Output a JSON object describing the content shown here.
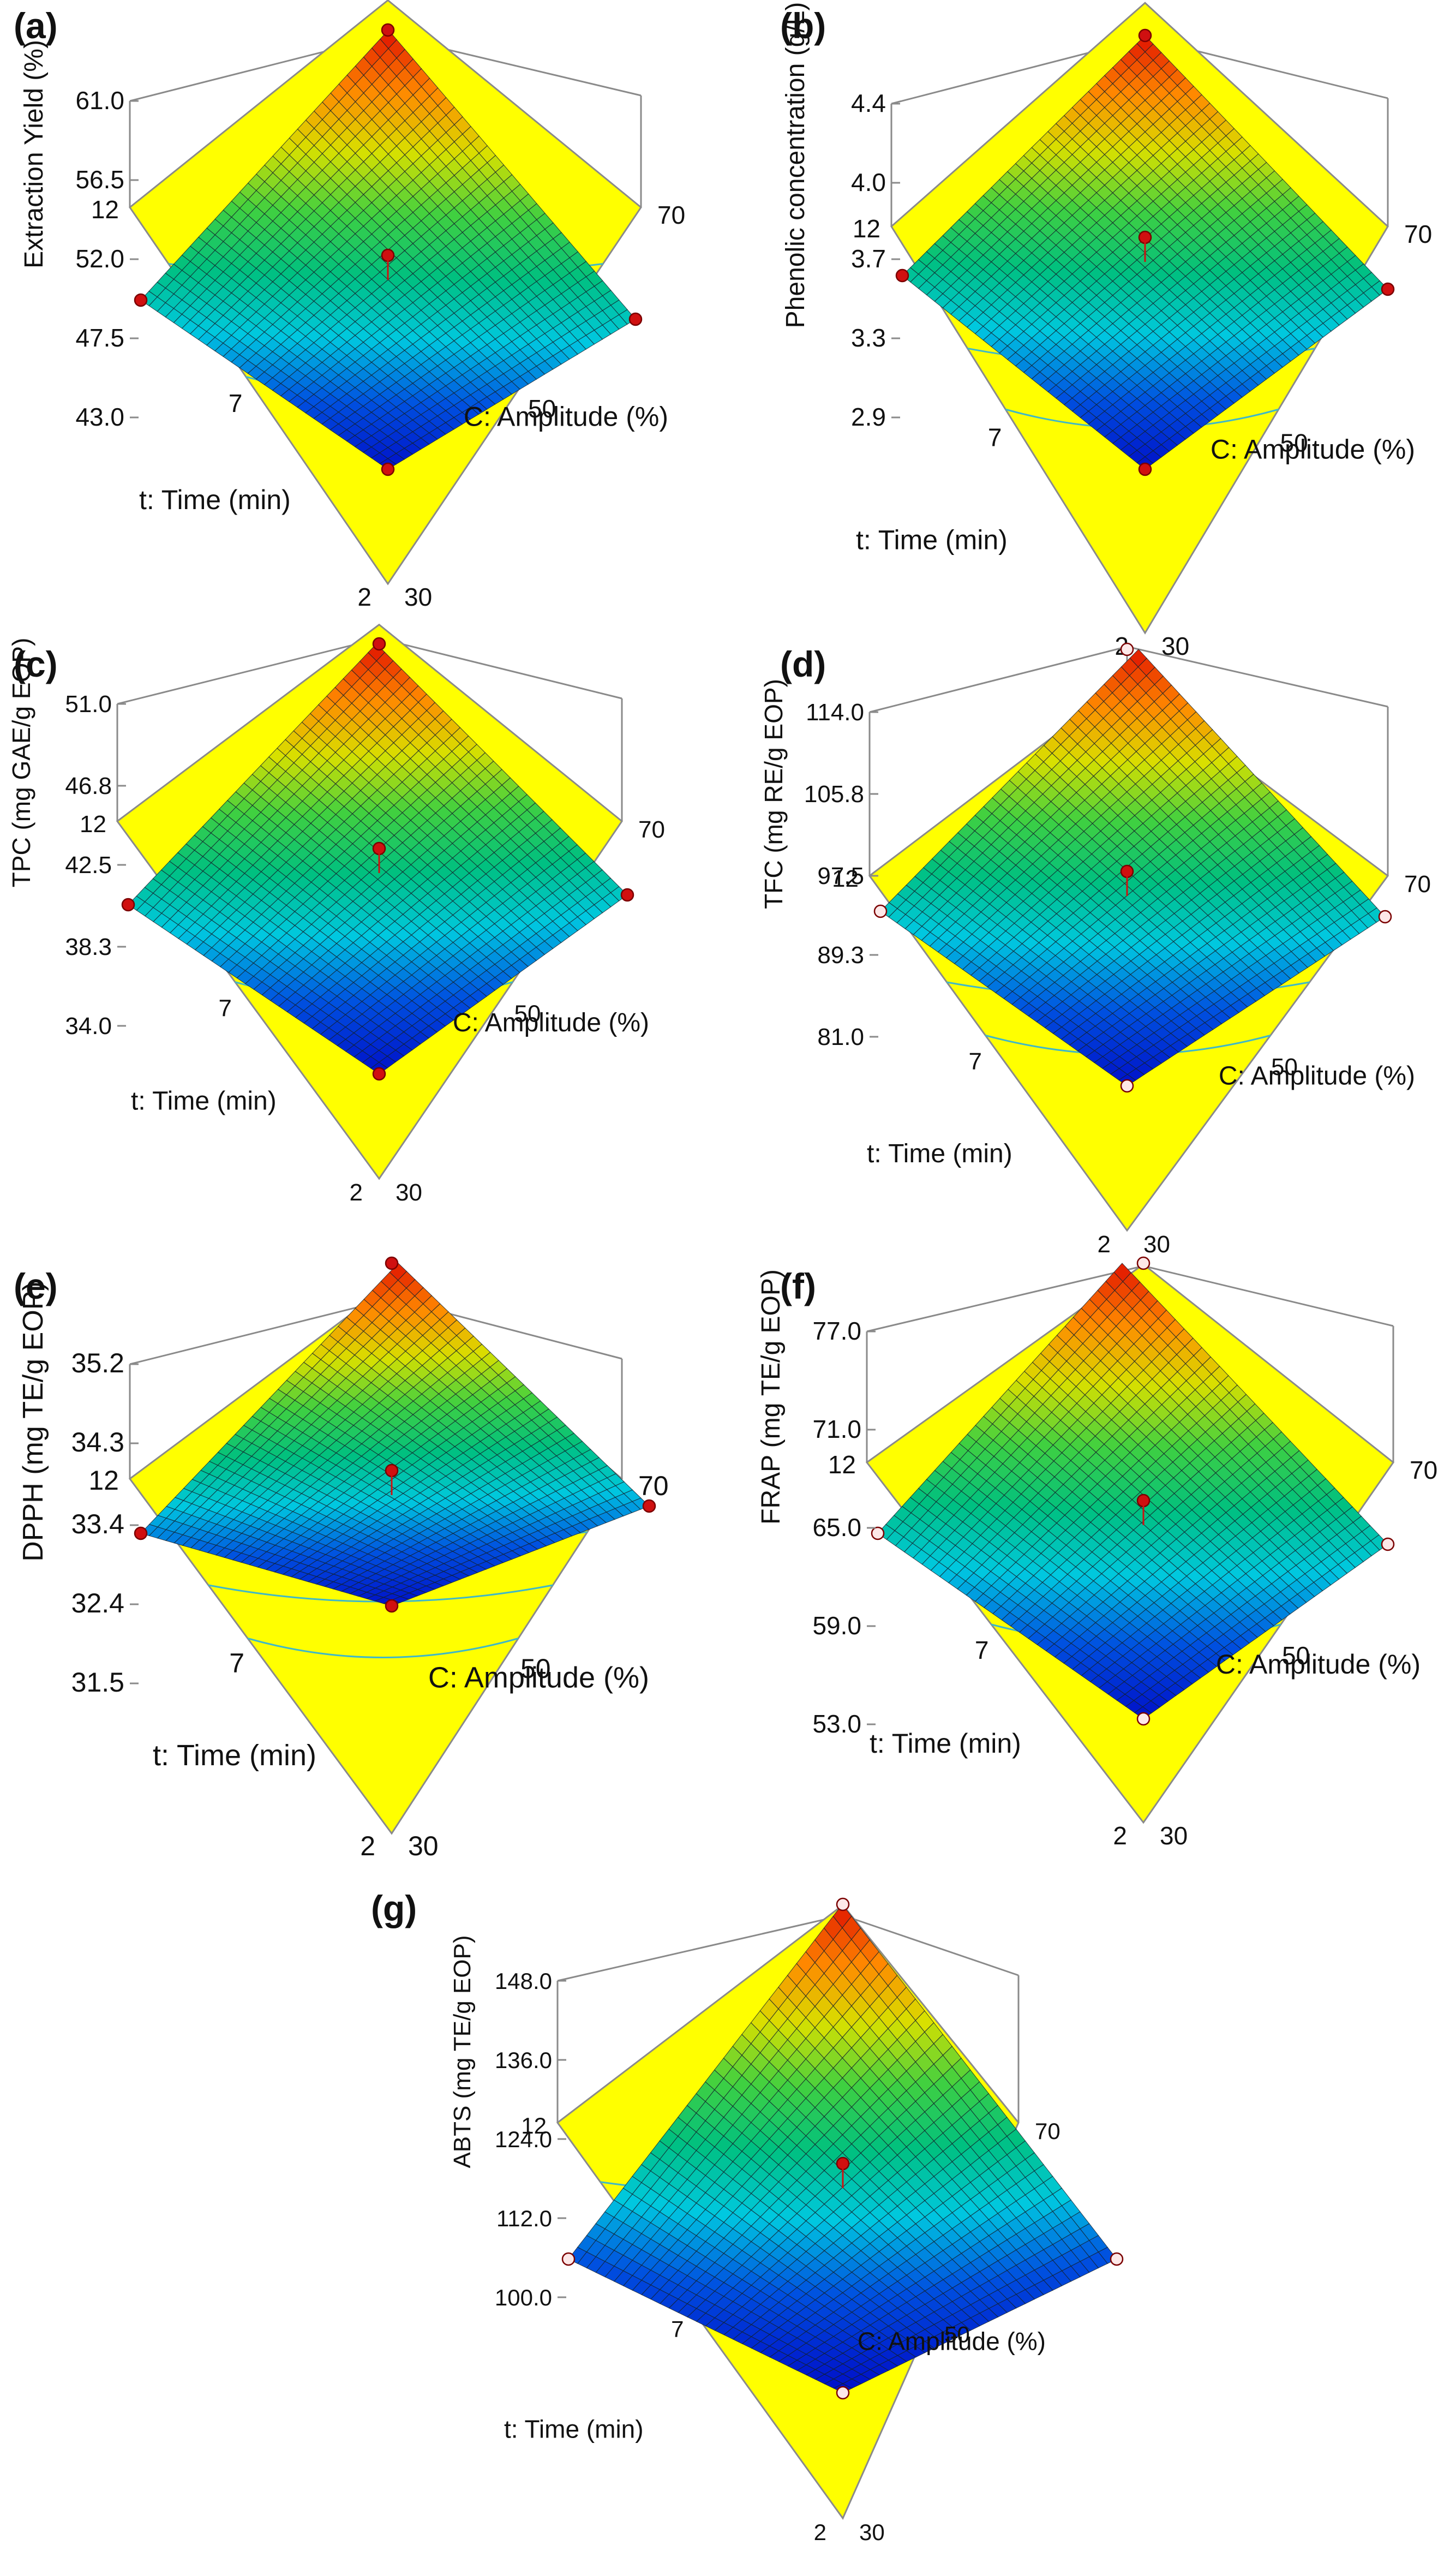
{
  "colors": {
    "background": "#ffffff",
    "floor": "#ffff00",
    "floor_contour": "#3fb8c8",
    "box_line": "#8a8a8a",
    "mesh": "#13202c",
    "design_point": "#d01010",
    "surface_gradient": [
      "#0010c8",
      "#0050e0",
      "#00c8e0",
      "#00c080",
      "#40d040",
      "#d8e000",
      "#ff8800",
      "#e01000"
    ]
  },
  "chart_data": [
    {
      "type": "surface",
      "panel": "(a)",
      "zlabel": "Extraction Yield (%)",
      "zticks": [
        "61.0",
        "56.5",
        "52.0",
        "47.5",
        "43.0"
      ],
      "xlabel": "C: Amplitude (%)",
      "xticks": [
        "30",
        "50",
        "70"
      ],
      "ylabel": "t: Time (min)",
      "yticks": [
        "2",
        "7",
        "12"
      ],
      "corners": {
        "t2_c30": 40.5,
        "t12_c30": 48.5,
        "t2_c70": 48.2,
        "t12_c70": 63.4
      },
      "center": 51.8,
      "point_style": "filled"
    },
    {
      "type": "surface",
      "panel": "(b)",
      "zlabel": "Phenolic concentration (g/L)",
      "zticks": [
        "4.4",
        "4.0",
        "3.7",
        "3.3",
        "2.9"
      ],
      "xlabel": "C: Amplitude (%)",
      "xticks": [
        "30",
        "50",
        "70"
      ],
      "ylabel": "t: Time (min)",
      "yticks": [
        "2",
        "7",
        "12"
      ],
      "corners": {
        "t2_c30": 2.62,
        "t12_c30": 3.45,
        "t2_c70": 3.42,
        "t12_c70": 4.75
      },
      "center": 3.6,
      "point_style": "filled"
    },
    {
      "type": "surface",
      "panel": "(c)",
      "zlabel": "TPC (mg GAE/g EOP)",
      "zticks": [
        "51.0",
        "46.8",
        "42.5",
        "38.3",
        "34.0"
      ],
      "xlabel": "C: Amplitude (%)",
      "xticks": [
        "30",
        "50",
        "70"
      ],
      "ylabel": "t: Time (min)",
      "yticks": [
        "2",
        "7",
        "12"
      ],
      "corners": {
        "t2_c30": 31.5,
        "t12_c30": 39.0,
        "t2_c70": 38.8,
        "t12_c70": 54.0
      },
      "center": 41.5,
      "point_style": "filled"
    },
    {
      "type": "surface",
      "panel": "(d)",
      "zlabel": "TFC (mg RE/g EOP)",
      "zticks": [
        "114.0",
        "105.8",
        "97.5",
        "89.3",
        "81.0"
      ],
      "xlabel": "C: Amplitude (%)",
      "xticks": [
        "30",
        "50",
        "70"
      ],
      "ylabel": "t: Time (min)",
      "yticks": [
        "2",
        "7",
        "12"
      ],
      "corners": {
        "t2_c30": 75.0,
        "t12_c30": 89.5,
        "t2_c70": 89.2,
        "t12_c70": 120.0
      },
      "center": 94.5,
      "point_style": "open"
    },
    {
      "type": "surface",
      "panel": "(e)",
      "zlabel": "DPPH (mg TE/g EOP)",
      "zticks": [
        "35.2",
        "34.3",
        "33.4",
        "32.4",
        "31.5"
      ],
      "xlabel": "C: Amplitude (%)",
      "xticks": [
        "30",
        "50",
        "70"
      ],
      "ylabel": "t: Time (min)",
      "yticks": [
        "2",
        "7",
        "12"
      ],
      "corners": {
        "t2_c30": 31.6,
        "t12_c30": 32.5,
        "t2_c70": 32.6,
        "t12_c70": 35.9
      },
      "center": 33.2,
      "point_style": "filled"
    },
    {
      "type": "surface",
      "panel": "(f)",
      "zlabel": "FRAP (mg TE/g EOP)",
      "zticks": [
        "77.0",
        "71.0",
        "65.0",
        "59.0",
        "53.0"
      ],
      "xlabel": "C: Amplitude (%)",
      "xticks": [
        "30",
        "50",
        "70"
      ],
      "ylabel": "t: Time (min)",
      "yticks": [
        "2",
        "7",
        "12"
      ],
      "corners": {
        "t2_c30": 48.5,
        "t12_c30": 60.0,
        "t2_c70": 59.5,
        "t12_c70": 81.5
      },
      "center": 63.5,
      "point_style": "open"
    },
    {
      "type": "surface",
      "panel": "(g)",
      "zlabel": "ABTS (mg TE/g EOP)",
      "zticks": [
        "148.0",
        "136.0",
        "124.0",
        "112.0",
        "100.0"
      ],
      "xlabel": "C: Amplitude (%)",
      "xticks": [
        "30",
        "50",
        "70"
      ],
      "ylabel": "t: Time (min)",
      "yticks": [
        "2",
        "7",
        "12"
      ],
      "corners": {
        "t2_c30": 94.0,
        "t12_c30": 103.0,
        "t2_c70": 102.5,
        "t12_c70": 158.0
      },
      "center": 117.0,
      "point_style": "open"
    }
  ]
}
